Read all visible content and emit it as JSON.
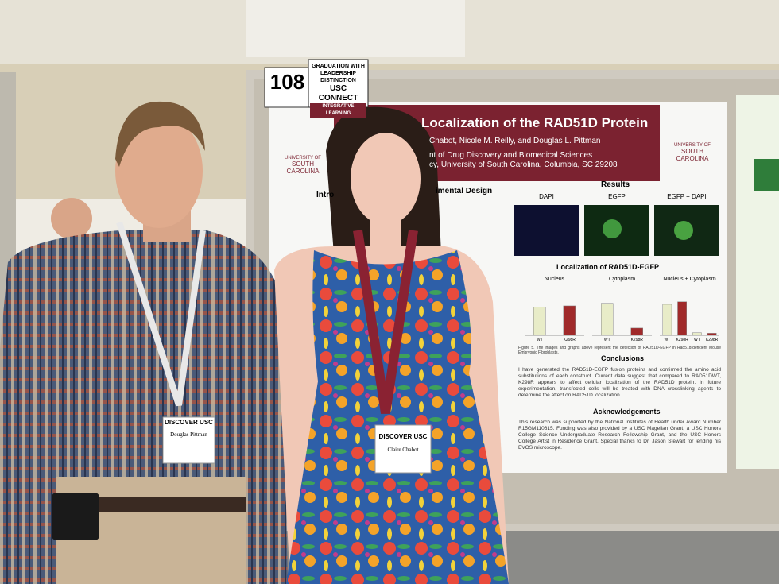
{
  "sign": {
    "number": "108",
    "badge": [
      "GRADUATION WITH",
      "LEADERSHIP",
      "DISTINCTION",
      "USC CONNECT",
      "INTEGRATIVE LEARNING"
    ]
  },
  "poster": {
    "title": "Localization of the RAD51D Protein",
    "authors": "Chabot, Nicole M. Reilly, and Douglas L. Pittman",
    "affiliation": [
      "nt of Drug Discovery and Biomedical Sciences",
      "cy, University of South Carolina, Columbia, SC 29208"
    ],
    "logo": [
      "UNIVERSITY OF",
      "SOUTH CAROLINA"
    ],
    "sections": {
      "intro": "Intro",
      "design": "imental Design",
      "results": "Results",
      "conclusions": "Conclusions",
      "acknowledgements": "Acknowledgements"
    },
    "panels": [
      "DAPI",
      "EGFP",
      "EGFP + DAPI"
    ],
    "chart_title": "Localization of RAD51D-EGFP",
    "groups": [
      {
        "name": "Nucleus",
        "bars": [
          {
            "label": "WT",
            "value": 0.55
          },
          {
            "label": "K298R",
            "value": 0.57
          }
        ]
      },
      {
        "name": "Cytoplasm",
        "bars": [
          {
            "label": "WT",
            "value": 0.62
          },
          {
            "label": "K298R",
            "value": 0.14
          }
        ]
      },
      {
        "name": "Nucleus + Cytoplasm",
        "bars": [
          {
            "label": "WT",
            "value": 0.6
          },
          {
            "label": "K298R",
            "value": 0.65
          },
          {
            "label": "WT",
            "value": 0.05
          },
          {
            "label": "K298R",
            "value": 0.04
          }
        ]
      }
    ],
    "caption": "Figure 5. The images and graphs above represent the detection of RAD51D-EGFP in Rad51d-deficient Mouse Embryonic Fibroblasts.",
    "conclusions": "I have generated the RAD51D-EGFP fusion proteins and confirmed the amino acid substitutions of each construct. Current data suggest that compared to RAD51DWT, K298R appears to affect cellular localization of the RAD51D protein. In future experimentation, transfected cells will be treated with DNA crosslinking agents to determine the affect on RAD51D localization.",
    "acknowledgements": "This research was supported by the National Institutes of Health under Award Number R15GM110615. Funding was also provided by a USC Magellan Grant, a USC Honors College Science Undergraduate Research Fellowship Grant, and the USC Honors College Artist in Residence Grant. Special thanks to Dr. Jason Stewart for lending his EVOS microscope."
  },
  "badges": [
    {
      "brand": "DISCOVER USC",
      "name": "Douglas Pittman"
    },
    {
      "brand": "DISCOVER USC",
      "name": "Claire Chabot"
    }
  ]
}
